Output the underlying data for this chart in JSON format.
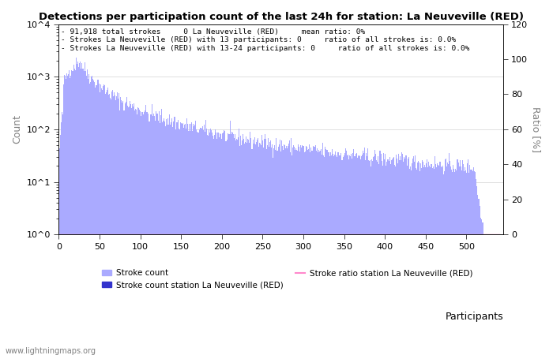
{
  "title": "Detections per participation count of the last 24h for station: La Neuveville (RED)",
  "ylabel_left": "Count",
  "ylabel_right": "Ratio [%]",
  "xlabel": "Participants",
  "annotation_lines": [
    "91,918 total strokes     0 La Neuveville (RED)     mean ratio: 0%",
    "Strokes La Neuveville (RED) with 13 participants: 0     ratio of all strokes is: 0.0%",
    "Strokes La Neuveville (RED) with 13-24 participants: 0     ratio of all strokes is: 0.0%"
  ],
  "bar_color_main": "#aaaaff",
  "bar_color_station": "#3333cc",
  "ratio_line_color": "#ff88cc",
  "watermark": "www.lightningmaps.org",
  "x_max": 540,
  "y_left_min": 1,
  "y_left_max": 10000,
  "y_right_min": 0,
  "y_right_max": 120,
  "xticks": [
    0,
    50,
    100,
    150,
    200,
    250,
    300,
    350,
    400,
    450,
    500
  ],
  "yticks_left": [
    1,
    10,
    100,
    1000,
    10000
  ],
  "ytick_labels_left": [
    "10^0",
    "10^1",
    "10^2",
    "10^3",
    "10^4"
  ],
  "yticks_right": [
    0,
    20,
    40,
    60,
    80,
    100,
    120
  ],
  "legend_labels": [
    "Stroke count",
    "Stroke count station La Neuveville (RED)",
    "Stroke ratio station La Neuveville (RED)"
  ]
}
